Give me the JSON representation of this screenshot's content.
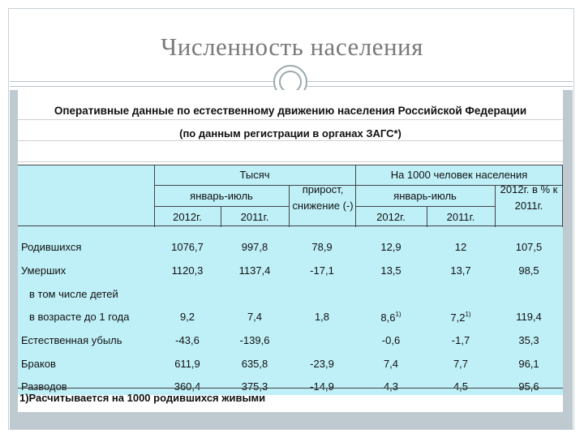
{
  "slide": {
    "title": "Численность населения"
  },
  "doc": {
    "heading": "Оперативные данные по естественному движению населения Российской Федерации",
    "subheading": "(по данным регистрации в органах ЗАГС*)",
    "header": {
      "thousand": "Тысяч",
      "per1000": "На 1000 человек населения",
      "jan_jul_1": "январь-июль",
      "jan_jul_2": "январь-июль",
      "growth": "прирост, снижение (-)",
      "pct": "2012г. в % к 2011г.",
      "y2012_a": "2012г.",
      "y2011_a": "2011г.",
      "y2012_b": "2012г.",
      "y2011_b": "2011г."
    },
    "rows": [
      {
        "label": "Родившихся",
        "c1": "1076,7",
        "c2": "997,8",
        "c3": "78,9",
        "c4": "12,9",
        "c5": "12",
        "c6": "107,5"
      },
      {
        "label": "Умерших",
        "c1": "1120,3",
        "c2": "1137,4",
        "c3": "-17,1",
        "c4": "13,5",
        "c5": "13,7",
        "c6": "98,5"
      },
      {
        "label": "в том числе детей"
      },
      {
        "label": "в возрасте до 1 года",
        "c1": "9,2",
        "c2": "7,4",
        "c3": "1,8",
        "c4": "8,6",
        "c4sup": "1)",
        "c5": "7,2",
        "c5sup": "1)",
        "c6": "119,4"
      },
      {
        "label": "Естественная убыль",
        "c1": "-43,6",
        "c2": "-139,6",
        "c3": "",
        "c4": "-0,6",
        "c5": "-1,7",
        "c6": "35,3"
      },
      {
        "label": "Браков",
        "c1": "611,9",
        "c2": "635,8",
        "c3": "-23,9",
        "c4": "7,4",
        "c5": "7,7",
        "c6": "96,1"
      },
      {
        "label": "Разводов",
        "c1": "360,4",
        "c2": "375,3",
        "c3": "-14,9",
        "c4": "4,3",
        "c5": "4,5",
        "c6": "95,6"
      }
    ],
    "footnote": "1)Расчитывается на 1000 родившихся живыми"
  }
}
